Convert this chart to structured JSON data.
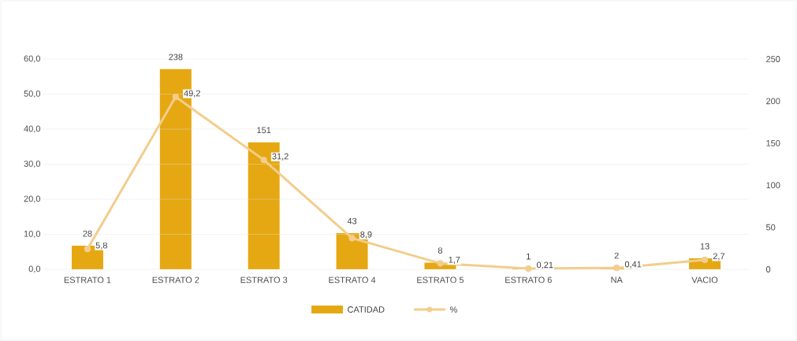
{
  "chart_data": {
    "type": "bar",
    "categories": [
      "ESTRATO 1",
      "ESTRATO 2",
      "ESTRATO 3",
      "ESTRATO 4",
      "ESTRATO 5",
      "ESTRATO 6",
      "NA",
      "VACIO"
    ],
    "series": [
      {
        "name": "CATIDAD",
        "axis": "y2",
        "color": "#e5a812",
        "values": [
          28,
          238,
          151,
          43,
          8,
          1,
          2,
          13
        ],
        "value_labels": [
          "28",
          "238",
          "151",
          "43",
          "8",
          "1",
          "2",
          "13"
        ]
      },
      {
        "name": "%",
        "type": "line",
        "axis": "y",
        "color": "#f3cd8c",
        "values": [
          5.8,
          49.2,
          31.2,
          8.9,
          1.7,
          0.21,
          0.41,
          2.7
        ],
        "value_labels": [
          "5,8",
          "49,2",
          "31,2",
          "8,9",
          "1,7",
          "0,21",
          "0,41",
          "2,7"
        ]
      }
    ],
    "ylim": [
      0,
      60
    ],
    "yticks": [
      {
        "value": 0,
        "label": "0,0"
      },
      {
        "value": 10,
        "label": "10,0"
      },
      {
        "value": 20,
        "label": "20,0"
      },
      {
        "value": 30,
        "label": "30,0"
      },
      {
        "value": 40,
        "label": "40,0"
      },
      {
        "value": 50,
        "label": "50,0"
      },
      {
        "value": 60,
        "label": "60,0"
      }
    ],
    "y2lim": [
      0,
      250
    ],
    "y2ticks": [
      0,
      50,
      100,
      150,
      200,
      250
    ],
    "grid": "y",
    "legend": "bottom",
    "marker": "circle",
    "line_style": "solid"
  }
}
